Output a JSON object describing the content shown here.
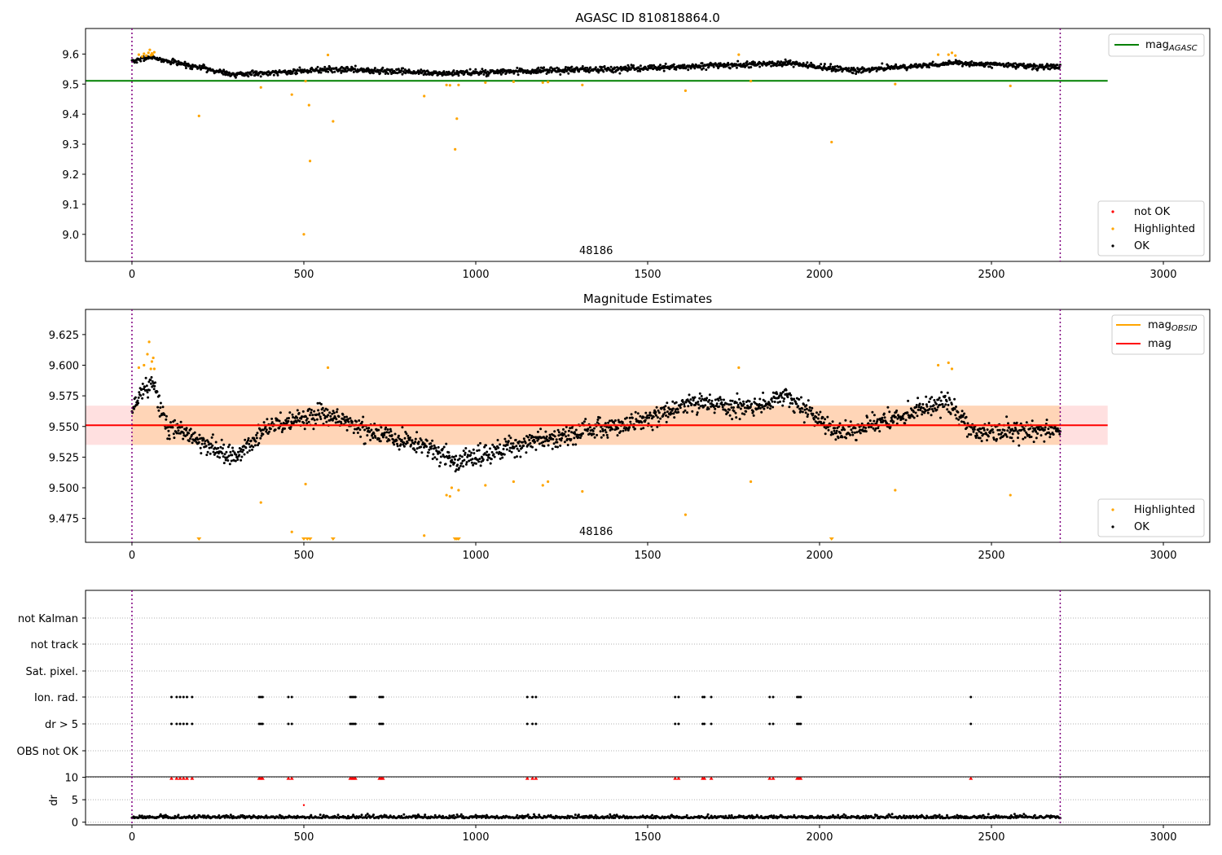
{
  "chart_data": [
    {
      "type": "scatter",
      "title": "AGASC ID 810818864.0",
      "xlim": [
        -135,
        3135
      ],
      "ylim": [
        8.91,
        9.685
      ],
      "xticks": [
        0,
        500,
        1000,
        1500,
        2000,
        2500,
        3000
      ],
      "yticks": [
        9.0,
        9.1,
        9.2,
        9.3,
        9.4,
        9.5,
        9.6
      ],
      "ytick_decimals": 1,
      "obsid_label": "48186",
      "obsid_label_x": 1350,
      "boundaries": [
        0,
        2700
      ],
      "hline": {
        "name_main": "mag",
        "name_sub": "AGASC",
        "y": 9.511,
        "x_range": [
          -135,
          2838
        ],
        "color": "#008000"
      },
      "ok_trend": {
        "x0": 0,
        "x1": 2700,
        "n": 1700,
        "knots_x": [
          0,
          50,
          300,
          600,
          900,
          1500,
          1900,
          2100,
          2400,
          2700
        ],
        "knots_y": [
          9.575,
          9.59,
          9.532,
          9.55,
          9.535,
          9.553,
          9.57,
          9.545,
          9.57,
          9.555
        ],
        "noise": 0.012,
        "seed": 7
      },
      "series": [
        {
          "name": "Highlighted",
          "color": "#ffa500",
          "points": [
            [
              20,
              9.598
            ],
            [
              30,
              9.592
            ],
            [
              35,
              9.601
            ],
            [
              42,
              9.595
            ],
            [
              48,
              9.604
            ],
            [
              52,
              9.614
            ],
            [
              55,
              9.596
            ],
            [
              58,
              9.602
            ],
            [
              60,
              9.598
            ],
            [
              65,
              9.606
            ],
            [
              195,
              9.394
            ],
            [
              375,
              9.489
            ],
            [
              465,
              9.465
            ],
            [
              500,
              9.0
            ],
            [
              505,
              9.51
            ],
            [
              515,
              9.43
            ],
            [
              518,
              9.244
            ],
            [
              570,
              9.597
            ],
            [
              585,
              9.376
            ],
            [
              850,
              9.46
            ],
            [
              915,
              9.497
            ],
            [
              925,
              9.496
            ],
            [
              940,
              9.283
            ],
            [
              945,
              9.385
            ],
            [
              950,
              9.497
            ],
            [
              1028,
              9.505
            ],
            [
              1110,
              9.508
            ],
            [
              1195,
              9.505
            ],
            [
              1210,
              9.507
            ],
            [
              1310,
              9.497
            ],
            [
              1610,
              9.478
            ],
            [
              1765,
              9.598
            ],
            [
              1800,
              9.51
            ],
            [
              2035,
              9.307
            ],
            [
              2220,
              9.5
            ],
            [
              2345,
              9.598
            ],
            [
              2375,
              9.598
            ],
            [
              2385,
              9.604
            ],
            [
              2395,
              9.595
            ],
            [
              2555,
              9.494
            ]
          ]
        }
      ],
      "legend_upper": "top-right",
      "legend_lower": "bottom-right",
      "legend_items": [
        "not OK",
        "Highlighted",
        "OK"
      ],
      "legend_colors": [
        "#ff0000",
        "#ffa500",
        "#000000"
      ]
    },
    {
      "type": "scatter",
      "title": "Magnitude Estimates",
      "xlim": [
        -135,
        3135
      ],
      "ylim": [
        9.4555,
        9.6455
      ],
      "xticks": [
        0,
        500,
        1000,
        1500,
        2000,
        2500,
        3000
      ],
      "yticks": [
        9.475,
        9.5,
        9.525,
        9.55,
        9.575,
        9.6,
        9.625
      ],
      "ytick_decimals": 3,
      "obsid_label": "48186",
      "obsid_label_x": 1350,
      "boundaries": [
        0,
        2700
      ],
      "band": {
        "y_low": 9.535,
        "y_high": 9.567,
        "x_range": [
          -135,
          2838
        ]
      },
      "band_inner": {
        "y_low": 9.535,
        "y_high": 9.567,
        "x_range": [
          0,
          2700
        ]
      },
      "mag_line": {
        "name": "mag",
        "y": 9.551,
        "x_range": [
          -135,
          2838
        ],
        "color": "#ff0000"
      },
      "obsid_line": {
        "name_main": "mag",
        "name_sub": "OBSID",
        "y": 9.551,
        "x_range": [
          0,
          2700
        ],
        "color": "#ffa500"
      },
      "ok_trend": {
        "x0": 0,
        "x1": 2700,
        "n": 1800,
        "knots_x": [
          0,
          30,
          60,
          100,
          300,
          400,
          560,
          700,
          850,
          950,
          1050,
          1200,
          1500,
          1620,
          1800,
          1900,
          2050,
          2200,
          2370,
          2450,
          2700
        ],
        "knots_y": [
          9.565,
          9.58,
          9.585,
          9.55,
          9.525,
          9.55,
          9.56,
          9.545,
          9.535,
          9.52,
          9.53,
          9.54,
          9.555,
          9.57,
          9.565,
          9.575,
          9.545,
          9.555,
          9.57,
          9.545,
          9.548
        ],
        "noise": 0.01,
        "seed": 11
      },
      "series": [
        {
          "name": "Highlighted",
          "color": "#ffa500",
          "points": [
            [
              20,
              9.598
            ],
            [
              35,
              9.6
            ],
            [
              45,
              9.609
            ],
            [
              50,
              9.619
            ],
            [
              55,
              9.597
            ],
            [
              58,
              9.603
            ],
            [
              62,
              9.606
            ],
            [
              65,
              9.597
            ],
            [
              375,
              9.488
            ],
            [
              465,
              9.464
            ],
            [
              505,
              9.503
            ],
            [
              570,
              9.598
            ],
            [
              850,
              9.461
            ],
            [
              915,
              9.494
            ],
            [
              925,
              9.493
            ],
            [
              930,
              9.5
            ],
            [
              950,
              9.498
            ],
            [
              1028,
              9.502
            ],
            [
              1110,
              9.505
            ],
            [
              1195,
              9.502
            ],
            [
              1210,
              9.505
            ],
            [
              1310,
              9.497
            ],
            [
              1610,
              9.478
            ],
            [
              1765,
              9.598
            ],
            [
              1800,
              9.505
            ],
            [
              2220,
              9.498
            ],
            [
              2345,
              9.6
            ],
            [
              2375,
              9.602
            ],
            [
              2385,
              9.597
            ],
            [
              2555,
              9.494
            ]
          ]
        },
        {
          "name": "Highlighted (below axis)",
          "color": "#ffa500",
          "points": [
            [
              195,
              9.0
            ],
            [
              500,
              9.0
            ],
            [
              510,
              9.0
            ],
            [
              518,
              9.0
            ],
            [
              585,
              9.0
            ],
            [
              940,
              9.0
            ],
            [
              945,
              9.0
            ],
            [
              950,
              9.0
            ],
            [
              2035,
              9.0
            ]
          ]
        }
      ],
      "legend_upper": "top-right",
      "legend_lower": "bottom-right",
      "legend_items": [
        "Highlighted",
        "OK"
      ],
      "legend_colors": [
        "#ffa500",
        "#000000"
      ]
    },
    {
      "type": "scatter",
      "title": "",
      "xlim": [
        -135,
        3135
      ],
      "boundaries": [
        0,
        2700
      ],
      "flag_rows": [
        "not Kalman",
        "not track",
        "Sat. pixel.",
        "Ion. rad.",
        "dr > 5",
        "OBS not OK"
      ],
      "flag_points": {
        "Ion. rad.": [
          115,
          130,
          140,
          150,
          160,
          175,
          370,
          375,
          380,
          455,
          465,
          635,
          640,
          645,
          650,
          720,
          725,
          730,
          1150,
          1165,
          1175,
          1580,
          1590,
          1660,
          1665,
          1685,
          1855,
          1865,
          1935,
          1940,
          1945,
          2440
        ],
        "dr > 5": [
          115,
          130,
          140,
          150,
          160,
          175,
          370,
          375,
          380,
          455,
          465,
          635,
          640,
          645,
          650,
          720,
          725,
          730,
          1150,
          1165,
          1175,
          1580,
          1590,
          1660,
          1665,
          1685,
          1855,
          1865,
          1935,
          1940,
          1945,
          2440
        ]
      },
      "dr_ylabel": "dr",
      "dr_ylim": [
        -0.6,
        10.1
      ],
      "dr_yticks": [
        0,
        5,
        10
      ],
      "dr_clipped_x": [
        115,
        130,
        140,
        150,
        160,
        175,
        370,
        375,
        380,
        455,
        465,
        635,
        640,
        645,
        650,
        720,
        725,
        730,
        1150,
        1165,
        1175,
        1580,
        1590,
        1660,
        1665,
        1685,
        1855,
        1865,
        1935,
        1940,
        1945,
        2440
      ],
      "dr_extra_points": [
        [
          500,
          3.8
        ]
      ],
      "dr_trend": {
        "x0": 0,
        "x1": 2700,
        "n": 1100,
        "base": 0.9,
        "noise": 0.45,
        "seed": 23
      }
    }
  ]
}
